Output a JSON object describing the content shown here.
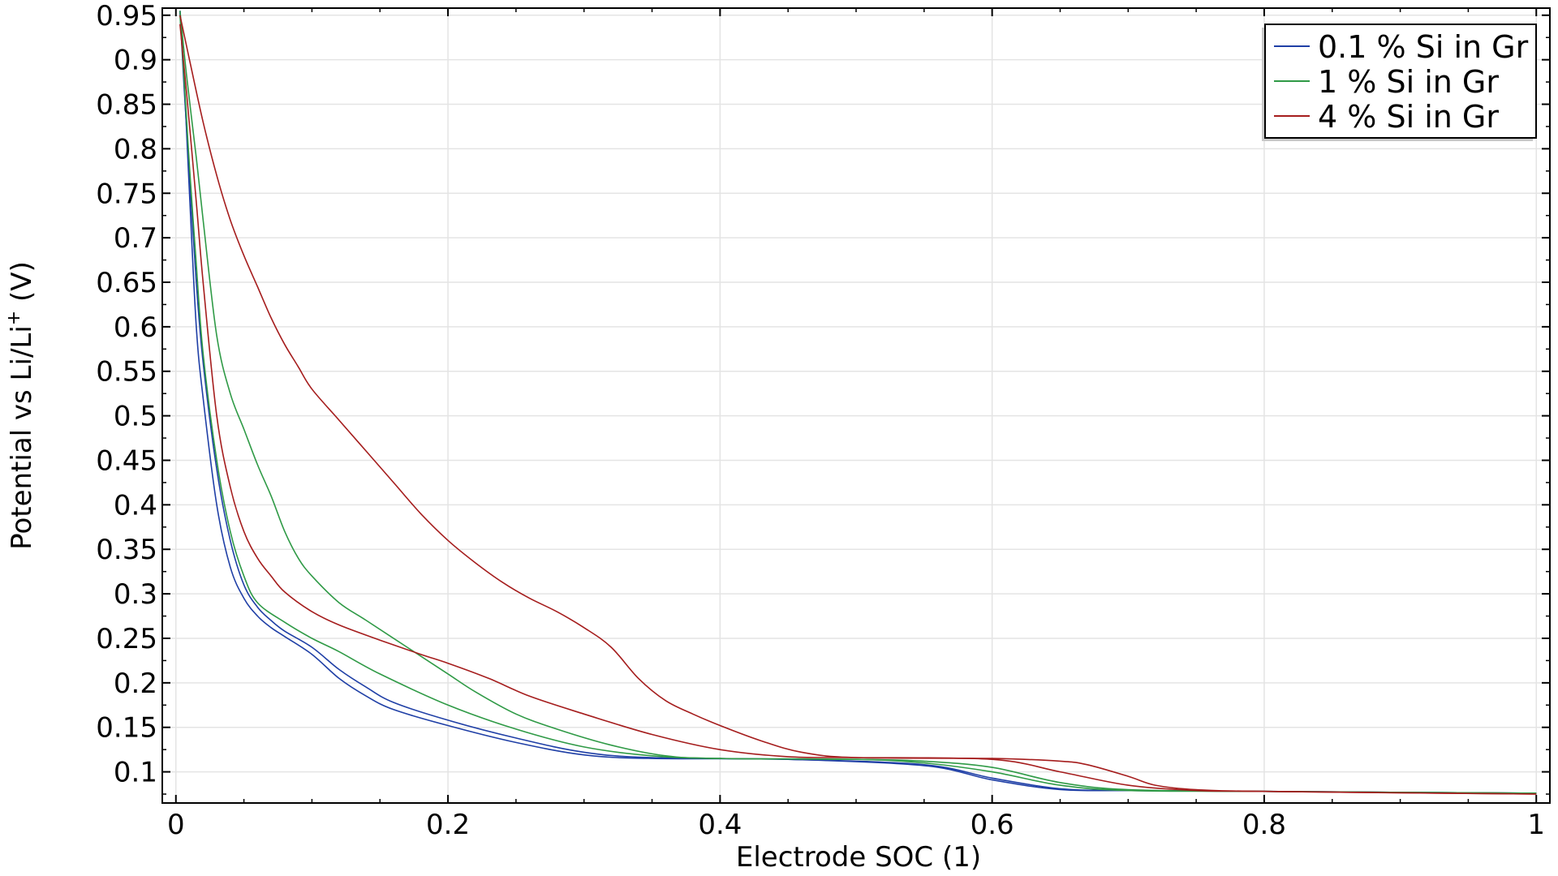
{
  "chart_data": {
    "type": "line",
    "xlabel": "Electrode SOC (1)",
    "ylabel_main": "Potential vs Li/Li",
    "ylabel_sup": "+",
    "ylabel_unit": " (V)",
    "xlim": [
      -0.01,
      1.01
    ],
    "ylim": [
      0.065,
      0.958
    ],
    "xticks": [
      0,
      0.2,
      0.4,
      0.6,
      0.8,
      1
    ],
    "xtick_labels": [
      "0",
      "0.2",
      "0.4",
      "0.6",
      "0.8",
      "1"
    ],
    "yticks": [
      0.1,
      0.15,
      0.2,
      0.25,
      0.3,
      0.35,
      0.4,
      0.45,
      0.5,
      0.55,
      0.6,
      0.65,
      0.7,
      0.75,
      0.8,
      0.85,
      0.9,
      0.95
    ],
    "ytick_labels": [
      "0.1",
      "0.15",
      "0.2",
      "0.25",
      "0.3",
      "0.35",
      "0.4",
      "0.45",
      "0.5",
      "0.55",
      "0.6",
      "0.65",
      "0.7",
      "0.75",
      "0.8",
      "0.85",
      "0.9",
      "0.95"
    ],
    "grid": true,
    "legend_position": "top-right",
    "series": [
      {
        "name": "0.1 % Si in Gr",
        "color": "#1f3fa6",
        "curves": [
          [
            [
              0.003,
              0.955
            ],
            [
              0.006,
              0.88
            ],
            [
              0.01,
              0.75
            ],
            [
              0.015,
              0.6
            ],
            [
              0.02,
              0.52
            ],
            [
              0.03,
              0.4
            ],
            [
              0.04,
              0.33
            ],
            [
              0.05,
              0.295
            ],
            [
              0.06,
              0.275
            ],
            [
              0.07,
              0.262
            ],
            [
              0.08,
              0.252
            ],
            [
              0.1,
              0.232
            ],
            [
              0.12,
              0.205
            ],
            [
              0.14,
              0.185
            ],
            [
              0.16,
              0.17
            ],
            [
              0.2,
              0.152
            ],
            [
              0.25,
              0.133
            ],
            [
              0.3,
              0.119
            ],
            [
              0.35,
              0.115
            ],
            [
              0.45,
              0.114
            ],
            [
              0.55,
              0.107
            ],
            [
              0.6,
              0.091
            ],
            [
              0.65,
              0.08
            ],
            [
              0.7,
              0.079
            ],
            [
              0.8,
              0.078
            ],
            [
              1.0,
              0.076
            ]
          ],
          [
            [
              0.003,
              0.955
            ],
            [
              0.006,
              0.87
            ],
            [
              0.01,
              0.77
            ],
            [
              0.015,
              0.65
            ],
            [
              0.02,
              0.56
            ],
            [
              0.03,
              0.44
            ],
            [
              0.04,
              0.36
            ],
            [
              0.05,
              0.31
            ],
            [
              0.06,
              0.285
            ],
            [
              0.07,
              0.27
            ],
            [
              0.08,
              0.258
            ],
            [
              0.1,
              0.24
            ],
            [
              0.12,
              0.215
            ],
            [
              0.14,
              0.195
            ],
            [
              0.16,
              0.178
            ],
            [
              0.2,
              0.158
            ],
            [
              0.25,
              0.138
            ],
            [
              0.3,
              0.122
            ],
            [
              0.35,
              0.116
            ],
            [
              0.45,
              0.114
            ],
            [
              0.55,
              0.108
            ],
            [
              0.6,
              0.093
            ],
            [
              0.65,
              0.081
            ],
            [
              0.7,
              0.079
            ],
            [
              0.8,
              0.078
            ],
            [
              1.0,
              0.076
            ]
          ]
        ]
      },
      {
        "name": "1 % Si in Gr",
        "color": "#2f9a46",
        "curves": [
          [
            [
              0.003,
              0.95
            ],
            [
              0.006,
              0.88
            ],
            [
              0.01,
              0.78
            ],
            [
              0.015,
              0.67
            ],
            [
              0.02,
              0.57
            ],
            [
              0.03,
              0.45
            ],
            [
              0.04,
              0.37
            ],
            [
              0.05,
              0.32
            ],
            [
              0.06,
              0.29
            ],
            [
              0.08,
              0.268
            ],
            [
              0.1,
              0.25
            ],
            [
              0.12,
              0.235
            ],
            [
              0.15,
              0.21
            ],
            [
              0.2,
              0.175
            ],
            [
              0.25,
              0.148
            ],
            [
              0.3,
              0.128
            ],
            [
              0.35,
              0.118
            ],
            [
              0.4,
              0.115
            ],
            [
              0.5,
              0.114
            ],
            [
              0.55,
              0.11
            ],
            [
              0.6,
              0.1
            ],
            [
              0.65,
              0.085
            ],
            [
              0.7,
              0.079
            ],
            [
              0.8,
              0.078
            ],
            [
              1.0,
              0.076
            ]
          ],
          [
            [
              0.003,
              0.955
            ],
            [
              0.008,
              0.88
            ],
            [
              0.015,
              0.79
            ],
            [
              0.02,
              0.72
            ],
            [
              0.03,
              0.59
            ],
            [
              0.04,
              0.525
            ],
            [
              0.05,
              0.485
            ],
            [
              0.06,
              0.445
            ],
            [
              0.07,
              0.41
            ],
            [
              0.08,
              0.37
            ],
            [
              0.09,
              0.34
            ],
            [
              0.1,
              0.32
            ],
            [
              0.12,
              0.29
            ],
            [
              0.14,
              0.27
            ],
            [
              0.17,
              0.24
            ],
            [
              0.2,
              0.21
            ],
            [
              0.22,
              0.19
            ],
            [
              0.25,
              0.165
            ],
            [
              0.28,
              0.148
            ],
            [
              0.32,
              0.13
            ],
            [
              0.36,
              0.118
            ],
            [
              0.4,
              0.115
            ],
            [
              0.5,
              0.114
            ],
            [
              0.55,
              0.112
            ],
            [
              0.6,
              0.105
            ],
            [
              0.65,
              0.088
            ],
            [
              0.7,
              0.08
            ],
            [
              0.8,
              0.078
            ],
            [
              1.0,
              0.076
            ]
          ]
        ]
      },
      {
        "name": "4 % Si in Gr",
        "color": "#a51d1d",
        "curves": [
          [
            [
              0.003,
              0.94
            ],
            [
              0.008,
              0.86
            ],
            [
              0.015,
              0.74
            ],
            [
              0.02,
              0.65
            ],
            [
              0.03,
              0.5
            ],
            [
              0.04,
              0.42
            ],
            [
              0.05,
              0.37
            ],
            [
              0.06,
              0.34
            ],
            [
              0.07,
              0.32
            ],
            [
              0.08,
              0.302
            ],
            [
              0.1,
              0.28
            ],
            [
              0.12,
              0.265
            ],
            [
              0.15,
              0.248
            ],
            [
              0.18,
              0.232
            ],
            [
              0.2,
              0.222
            ],
            [
              0.23,
              0.205
            ],
            [
              0.26,
              0.185
            ],
            [
              0.3,
              0.165
            ],
            [
              0.35,
              0.142
            ],
            [
              0.4,
              0.125
            ],
            [
              0.45,
              0.117
            ],
            [
              0.5,
              0.116
            ],
            [
              0.6,
              0.114
            ],
            [
              0.65,
              0.1
            ],
            [
              0.7,
              0.085
            ],
            [
              0.75,
              0.079
            ],
            [
              0.8,
              0.078
            ],
            [
              1.0,
              0.075
            ]
          ],
          [
            [
              0.003,
              0.95
            ],
            [
              0.01,
              0.9
            ],
            [
              0.02,
              0.83
            ],
            [
              0.03,
              0.77
            ],
            [
              0.04,
              0.72
            ],
            [
              0.05,
              0.68
            ],
            [
              0.06,
              0.645
            ],
            [
              0.07,
              0.61
            ],
            [
              0.08,
              0.58
            ],
            [
              0.09,
              0.555
            ],
            [
              0.1,
              0.53
            ],
            [
              0.12,
              0.495
            ],
            [
              0.14,
              0.46
            ],
            [
              0.16,
              0.425
            ],
            [
              0.18,
              0.39
            ],
            [
              0.2,
              0.36
            ],
            [
              0.22,
              0.335
            ],
            [
              0.24,
              0.313
            ],
            [
              0.26,
              0.295
            ],
            [
              0.28,
              0.28
            ],
            [
              0.3,
              0.262
            ],
            [
              0.32,
              0.24
            ],
            [
              0.34,
              0.205
            ],
            [
              0.36,
              0.18
            ],
            [
              0.38,
              0.165
            ],
            [
              0.4,
              0.152
            ],
            [
              0.43,
              0.135
            ],
            [
              0.46,
              0.122
            ],
            [
              0.5,
              0.116
            ],
            [
              0.6,
              0.115
            ],
            [
              0.65,
              0.112
            ],
            [
              0.67,
              0.108
            ],
            [
              0.7,
              0.095
            ],
            [
              0.72,
              0.085
            ],
            [
              0.75,
              0.08
            ],
            [
              0.8,
              0.078
            ],
            [
              1.0,
              0.075
            ]
          ]
        ]
      }
    ]
  }
}
